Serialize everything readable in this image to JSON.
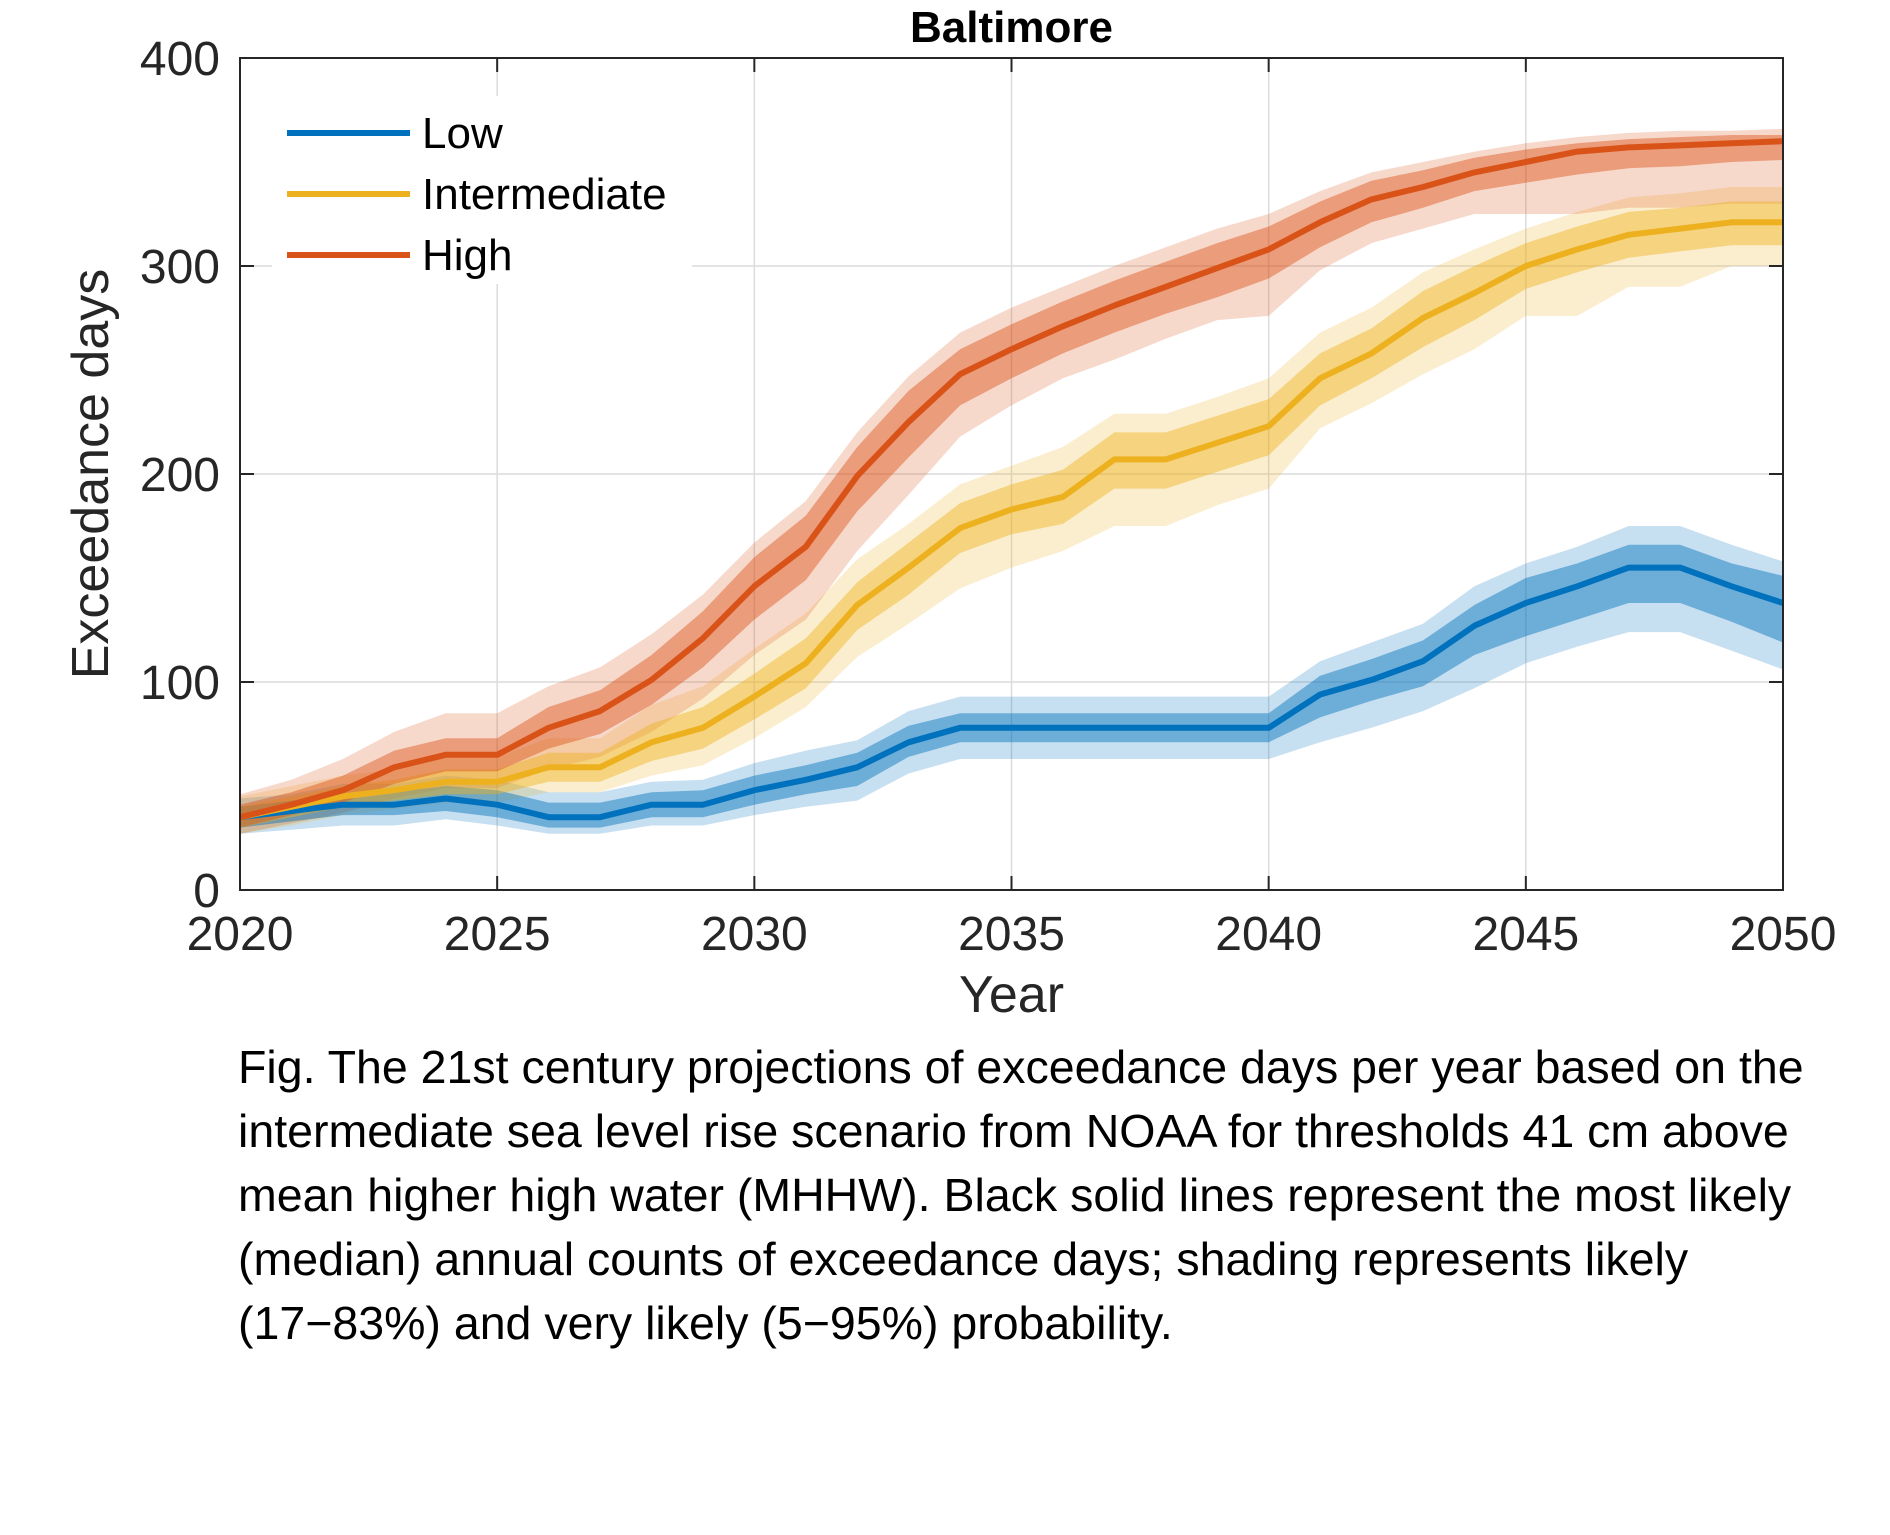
{
  "chart_data": {
    "type": "line",
    "title": "Baltimore",
    "xlabel": "Year",
    "ylabel": "Exceedance days",
    "xlim": [
      2020,
      2050
    ],
    "ylim": [
      0,
      400
    ],
    "xticks": [
      2020,
      2025,
      2030,
      2035,
      2040,
      2045,
      2050
    ],
    "yticks": [
      0,
      100,
      200,
      300,
      400
    ],
    "grid": true,
    "legend_position": "top-left",
    "x": [
      2020,
      2021,
      2022,
      2023,
      2024,
      2025,
      2026,
      2027,
      2028,
      2029,
      2030,
      2031,
      2032,
      2033,
      2034,
      2035,
      2036,
      2037,
      2038,
      2039,
      2040,
      2041,
      2042,
      2043,
      2044,
      2045,
      2046,
      2047,
      2048,
      2049,
      2050
    ],
    "series": [
      {
        "name": "Low",
        "color": "#0072BD",
        "median": [
          35,
          38,
          41,
          41,
          44,
          41,
          35,
          35,
          41,
          41,
          48,
          53,
          59,
          71,
          78,
          78,
          78,
          78,
          78,
          78,
          78,
          94,
          101,
          110,
          127,
          138,
          146,
          155,
          155,
          146,
          138
        ],
        "likely_low": [
          30,
          33,
          36,
          36,
          38,
          35,
          30,
          30,
          35,
          35,
          41,
          46,
          50,
          64,
          71,
          71,
          71,
          71,
          71,
          71,
          71,
          83,
          91,
          98,
          113,
          122,
          130,
          138,
          138,
          129,
          119
        ],
        "likely_high": [
          40,
          43,
          46,
          47,
          50,
          48,
          42,
          42,
          47,
          48,
          55,
          60,
          66,
          79,
          85,
          85,
          85,
          85,
          85,
          85,
          85,
          103,
          111,
          120,
          137,
          150,
          157,
          166,
          166,
          157,
          151
        ],
        "very_low": [
          27,
          29,
          31,
          31,
          34,
          31,
          27,
          27,
          31,
          31,
          36,
          40,
          43,
          56,
          63,
          63,
          63,
          63,
          63,
          63,
          63,
          71,
          78,
          86,
          97,
          109,
          117,
          124,
          124,
          115,
          106
        ],
        "very_high": [
          44,
          46,
          51,
          51,
          55,
          53,
          47,
          47,
          52,
          53,
          61,
          67,
          72,
          86,
          93,
          93,
          93,
          93,
          93,
          93,
          93,
          110,
          119,
          128,
          146,
          157,
          165,
          175,
          175,
          166,
          158
        ]
      },
      {
        "name": "Intermediate",
        "color": "#EDB120",
        "median": [
          35,
          40,
          45,
          48,
          52,
          52,
          59,
          59,
          71,
          78,
          93,
          109,
          137,
          155,
          174,
          183,
          189,
          207,
          207,
          215,
          223,
          246,
          258,
          275,
          287,
          300,
          308,
          315,
          318,
          321,
          321
        ],
        "likely_low": [
          30,
          35,
          40,
          43,
          46,
          46,
          52,
          52,
          62,
          68,
          82,
          97,
          125,
          142,
          162,
          171,
          176,
          193,
          193,
          201,
          209,
          233,
          246,
          261,
          274,
          289,
          297,
          304,
          307,
          310,
          310
        ],
        "likely_high": [
          40,
          45,
          50,
          53,
          58,
          58,
          66,
          66,
          80,
          88,
          104,
          121,
          148,
          167,
          186,
          195,
          202,
          220,
          220,
          228,
          236,
          258,
          270,
          288,
          300,
          311,
          319,
          326,
          328,
          331,
          331
        ],
        "very_low": [
          27,
          31,
          36,
          39,
          42,
          42,
          47,
          47,
          55,
          60,
          73,
          88,
          112,
          128,
          145,
          155,
          163,
          175,
          175,
          185,
          193,
          222,
          234,
          248,
          260,
          276,
          276,
          290,
          290,
          300,
          300
        ],
        "very_high": [
          45,
          50,
          55,
          58,
          64,
          64,
          73,
          73,
          89,
          98,
          116,
          133,
          159,
          176,
          195,
          204,
          213,
          229,
          229,
          237,
          246,
          268,
          280,
          297,
          308,
          318,
          326,
          333,
          335,
          338,
          338
        ]
      },
      {
        "name": "High",
        "color": "#D95319",
        "median": [
          35,
          41,
          48,
          59,
          65,
          65,
          78,
          86,
          101,
          121,
          146,
          165,
          199,
          225,
          248,
          260,
          271,
          281,
          290,
          299,
          308,
          321,
          332,
          338,
          345,
          350,
          355,
          357,
          358,
          359,
          360
        ],
        "likely_low": [
          30,
          36,
          42,
          51,
          57,
          57,
          68,
          75,
          89,
          107,
          130,
          149,
          182,
          208,
          233,
          246,
          258,
          268,
          277,
          285,
          294,
          309,
          321,
          328,
          336,
          340,
          344,
          347,
          348,
          350,
          351
        ],
        "likely_high": [
          41,
          47,
          55,
          67,
          73,
          73,
          88,
          96,
          113,
          134,
          160,
          180,
          213,
          240,
          260,
          272,
          283,
          293,
          302,
          311,
          319,
          331,
          341,
          346,
          352,
          356,
          359,
          361,
          362,
          363,
          363
        ],
        "very_low": [
          27,
          32,
          37,
          44,
          49,
          49,
          58,
          64,
          76,
          92,
          113,
          130,
          163,
          190,
          218,
          233,
          246,
          255,
          265,
          274,
          276,
          298,
          311,
          318,
          325,
          325,
          325,
          328,
          328,
          330,
          330
        ],
        "very_high": [
          46,
          53,
          63,
          76,
          85,
          85,
          98,
          107,
          123,
          142,
          167,
          187,
          220,
          247,
          268,
          280,
          290,
          300,
          309,
          318,
          325,
          336,
          345,
          350,
          355,
          359,
          362,
          364,
          365,
          365,
          366
        ]
      }
    ]
  },
  "caption": "Fig. The 21st century projections of exceedance days per year based on the intermediate sea level rise scenario from NOAA for thresholds 41 cm above mean higher high water (MHHW). Black solid lines represent the most likely (median) annual counts of exceedance days; shading represents likely (17−83%) and very likely (5−95%) probability."
}
